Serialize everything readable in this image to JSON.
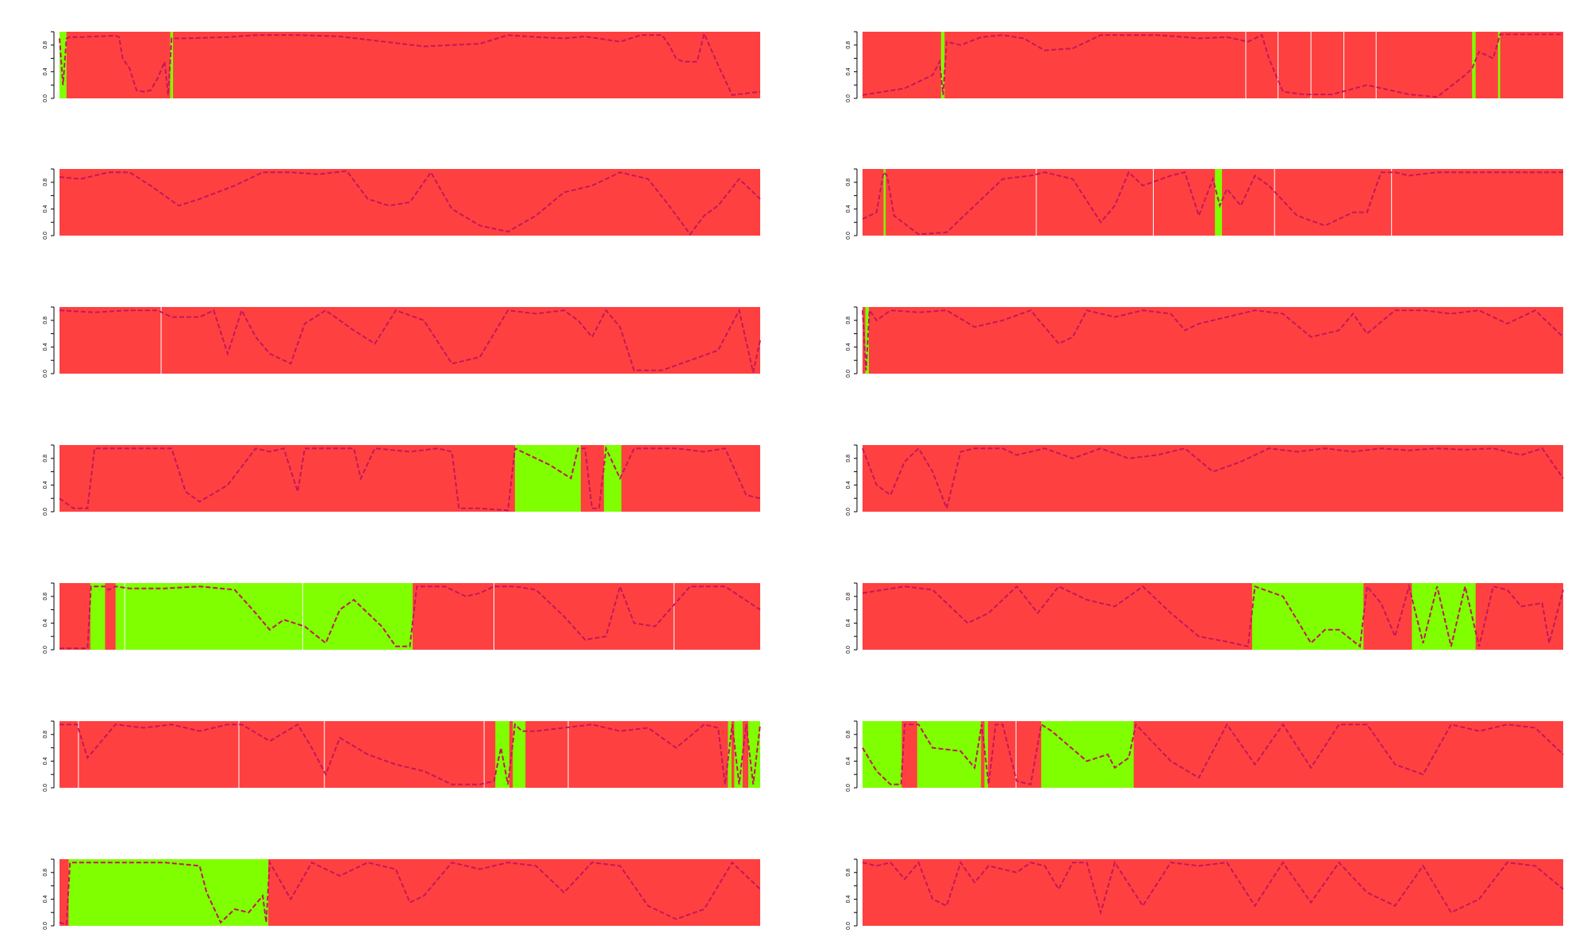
{
  "colors": {
    "state_a": "#ff4040",
    "state_b": "#7fff00",
    "line": "#c2185b",
    "separator": "#ffffff",
    "axis": "#000000"
  },
  "chart_data": [
    {
      "type": "area",
      "panel": "row1-left",
      "ylim": [
        0,
        1
      ],
      "yticks": [
        "0.0",
        "0.4",
        "0.8"
      ],
      "xlim": [
        0,
        100
      ],
      "green_ranges": [
        [
          0,
          1.0
        ],
        [
          15.8,
          16.2
        ]
      ],
      "separators": [],
      "x": [
        0,
        0.5,
        1,
        1.5,
        3,
        8,
        8.5,
        9,
        10,
        11,
        12,
        13,
        14,
        15,
        15.5,
        16,
        18,
        24,
        28,
        30,
        34,
        40,
        52,
        60,
        64,
        68,
        72,
        75,
        80,
        83,
        86,
        87,
        88,
        89,
        90,
        91,
        92,
        94,
        96,
        100
      ],
      "y": [
        0.9,
        0.2,
        0.9,
        0.92,
        0.92,
        0.94,
        0.92,
        0.6,
        0.45,
        0.12,
        0.1,
        0.12,
        0.3,
        0.55,
        0.05,
        0.9,
        0.9,
        0.92,
        0.95,
        0.95,
        0.95,
        0.93,
        0.78,
        0.82,
        0.95,
        0.92,
        0.9,
        0.93,
        0.85,
        0.95,
        0.95,
        0.8,
        0.6,
        0.55,
        0.55,
        0.55,
        0.97,
        0.5,
        0.05,
        0.1
      ]
    },
    {
      "type": "area",
      "panel": "row1-right",
      "ylim": [
        0,
        1
      ],
      "yticks": [
        "0.0",
        "0.4",
        "0.8"
      ],
      "xlim": [
        0,
        100
      ],
      "green_ranges": [
        [
          11.2,
          11.7
        ],
        [
          87,
          87.5
        ],
        [
          90.7,
          91
        ]
      ],
      "separators": [
        54.7,
        59.3,
        64,
        68.7,
        73.3
      ],
      "x": [
        0,
        6,
        10,
        11,
        11.5,
        12,
        14,
        17,
        20,
        23,
        26,
        30,
        34,
        38,
        42,
        46,
        48,
        52,
        55,
        56,
        57,
        58,
        60,
        63,
        67,
        72,
        78,
        82,
        86,
        87,
        88,
        90,
        91,
        92,
        100
      ],
      "y": [
        0.05,
        0.15,
        0.35,
        0.55,
        0.05,
        0.85,
        0.8,
        0.92,
        0.95,
        0.9,
        0.72,
        0.75,
        0.95,
        0.95,
        0.95,
        0.92,
        0.9,
        0.92,
        0.85,
        0.9,
        0.95,
        0.6,
        0.1,
        0.06,
        0.06,
        0.2,
        0.06,
        0.02,
        0.35,
        0.45,
        0.7,
        0.6,
        0.96,
        0.96,
        0.96
      ]
    },
    {
      "type": "area",
      "panel": "row2-left",
      "ylim": [
        0,
        1
      ],
      "yticks": [
        "0.0",
        "0.4",
        "0.8"
      ],
      "xlim": [
        0,
        100
      ],
      "green_ranges": [],
      "separators": [],
      "x": [
        0,
        3,
        7,
        10,
        13,
        17,
        20,
        25,
        29,
        33,
        37,
        41,
        44,
        47,
        50,
        53,
        56,
        60,
        64,
        68,
        72,
        76,
        80,
        84,
        87,
        90,
        92,
        94,
        97,
        100
      ],
      "y": [
        0.88,
        0.85,
        0.95,
        0.95,
        0.75,
        0.45,
        0.55,
        0.75,
        0.95,
        0.95,
        0.92,
        0.97,
        0.55,
        0.45,
        0.5,
        0.95,
        0.4,
        0.15,
        0.06,
        0.3,
        0.65,
        0.75,
        0.95,
        0.85,
        0.45,
        0.02,
        0.3,
        0.45,
        0.85,
        0.55
      ]
    },
    {
      "type": "area",
      "panel": "row2-right",
      "ylim": [
        0,
        1
      ],
      "yticks": [
        "0.0",
        "0.4",
        "0.8"
      ],
      "xlim": [
        0,
        100
      ],
      "green_ranges": [
        [
          3,
          3.3
        ],
        [
          50.3,
          51.3
        ]
      ],
      "separators": [
        24.8,
        41.5,
        58.8,
        75.5
      ],
      "x": [
        0,
        2,
        3,
        3.5,
        4.5,
        8,
        12,
        16,
        20,
        24,
        26,
        30,
        34,
        36,
        38,
        40,
        44,
        46,
        48,
        50,
        51,
        52,
        54,
        56,
        58,
        62,
        66,
        70,
        72,
        74,
        76,
        78,
        82,
        90,
        100
      ],
      "y": [
        0.25,
        0.35,
        0.95,
        0.9,
        0.3,
        0.02,
        0.05,
        0.45,
        0.85,
        0.9,
        0.95,
        0.85,
        0.2,
        0.45,
        0.95,
        0.75,
        0.9,
        0.95,
        0.3,
        0.85,
        0.45,
        0.7,
        0.45,
        0.9,
        0.75,
        0.3,
        0.15,
        0.35,
        0.35,
        0.95,
        0.95,
        0.9,
        0.95,
        0.95,
        0.95
      ]
    },
    {
      "type": "area",
      "panel": "row3-left",
      "ylim": [
        0,
        1
      ],
      "yticks": [
        "0.0",
        "0.4",
        "0.8"
      ],
      "xlim": [
        0,
        100
      ],
      "green_ranges": [],
      "separators": [
        14.5
      ],
      "x": [
        0,
        5,
        10,
        14,
        16,
        20,
        22,
        24,
        26,
        28,
        30,
        33,
        35,
        38,
        42,
        45,
        48,
        52,
        56,
        60,
        64,
        68,
        72,
        74,
        76,
        78,
        80,
        82,
        86,
        90,
        94,
        97,
        99,
        100
      ],
      "y": [
        0.95,
        0.92,
        0.95,
        0.95,
        0.85,
        0.85,
        0.95,
        0.3,
        0.95,
        0.55,
        0.3,
        0.15,
        0.75,
        0.95,
        0.65,
        0.45,
        0.95,
        0.8,
        0.15,
        0.25,
        0.95,
        0.9,
        0.95,
        0.8,
        0.55,
        0.95,
        0.7,
        0.05,
        0.05,
        0.2,
        0.35,
        0.95,
        0.02,
        0.5
      ]
    },
    {
      "type": "area",
      "panel": "row3-right",
      "ylim": [
        0,
        1
      ],
      "yticks": [
        "0.0",
        "0.4",
        "0.8"
      ],
      "xlim": [
        0,
        100
      ],
      "green_ranges": [
        [
          0.4,
          0.9
        ]
      ],
      "separators": [],
      "x": [
        0,
        0.5,
        1,
        2,
        4,
        8,
        12,
        16,
        20,
        24,
        28,
        30,
        32,
        36,
        40,
        44,
        46,
        48,
        52,
        56,
        60,
        64,
        68,
        70,
        72,
        76,
        80,
        84,
        88,
        92,
        96,
        100
      ],
      "y": [
        0.95,
        0.05,
        0.95,
        0.8,
        0.95,
        0.92,
        0.95,
        0.7,
        0.8,
        0.95,
        0.45,
        0.55,
        0.95,
        0.85,
        0.95,
        0.9,
        0.65,
        0.75,
        0.85,
        0.95,
        0.9,
        0.55,
        0.65,
        0.9,
        0.6,
        0.95,
        0.95,
        0.9,
        0.95,
        0.75,
        0.95,
        0.55
      ]
    },
    {
      "type": "area",
      "panel": "row4-left",
      "ylim": [
        0,
        1
      ],
      "yticks": [
        "0.0",
        "0.4",
        "0.8"
      ],
      "xlim": [
        0,
        100
      ],
      "green_ranges": [
        [
          65,
          74.4
        ],
        [
          77.7,
          80.2
        ]
      ],
      "separators": [],
      "x": [
        0,
        2,
        4,
        5,
        8,
        12,
        16,
        18,
        20,
        24,
        28,
        30,
        32,
        34,
        35,
        37,
        40,
        42,
        43,
        45,
        50,
        54,
        56,
        57,
        60,
        64,
        65,
        70,
        73,
        74,
        75,
        76,
        77,
        78,
        80,
        82,
        84,
        88,
        92,
        95,
        98,
        100
      ],
      "y": [
        0.2,
        0.05,
        0.05,
        0.95,
        0.95,
        0.95,
        0.95,
        0.3,
        0.15,
        0.4,
        0.95,
        0.9,
        0.95,
        0.3,
        0.95,
        0.95,
        0.95,
        0.95,
        0.5,
        0.95,
        0.9,
        0.95,
        0.9,
        0.05,
        0.05,
        0.02,
        0.95,
        0.7,
        0.5,
        0.95,
        0.95,
        0.05,
        0.05,
        0.95,
        0.5,
        0.95,
        0.95,
        0.95,
        0.9,
        0.95,
        0.25,
        0.2
      ]
    },
    {
      "type": "area",
      "panel": "row4-right",
      "ylim": [
        0,
        1
      ],
      "yticks": [
        "0.0",
        "0.4",
        "0.8"
      ],
      "xlim": [
        0,
        100
      ],
      "green_ranges": [],
      "separators": [],
      "x": [
        0,
        2,
        4,
        6,
        8,
        10,
        12,
        14,
        16,
        18,
        20,
        22,
        26,
        30,
        34,
        38,
        42,
        46,
        50,
        54,
        58,
        62,
        66,
        70,
        74,
        78,
        82,
        86,
        90,
        94,
        97,
        100
      ],
      "y": [
        0.95,
        0.4,
        0.25,
        0.75,
        0.95,
        0.6,
        0.05,
        0.9,
        0.95,
        0.95,
        0.95,
        0.85,
        0.95,
        0.8,
        0.95,
        0.8,
        0.85,
        0.95,
        0.6,
        0.75,
        0.95,
        0.9,
        0.95,
        0.9,
        0.95,
        0.92,
        0.95,
        0.93,
        0.95,
        0.85,
        0.95,
        0.5
      ]
    },
    {
      "type": "area",
      "panel": "row5-left",
      "ylim": [
        0,
        1
      ],
      "yticks": [
        "0.0",
        "0.4",
        "0.8"
      ],
      "xlim": [
        0,
        100
      ],
      "green_ranges": [
        [
          4.4,
          6.5
        ],
        [
          8,
          50.4
        ]
      ],
      "separators": [
        9.3,
        34.7,
        62,
        87.7
      ],
      "x": [
        0,
        4,
        4.5,
        6.5,
        7,
        8,
        10,
        15,
        20,
        25,
        28,
        30,
        32,
        35,
        38,
        40,
        42,
        44,
        46,
        48,
        50,
        51,
        55,
        58,
        60,
        62,
        65,
        68,
        72,
        75,
        78,
        80,
        82,
        85,
        90,
        95,
        100
      ],
      "y": [
        0.02,
        0.02,
        0.95,
        0.95,
        0.9,
        0.95,
        0.92,
        0.92,
        0.95,
        0.9,
        0.55,
        0.3,
        0.45,
        0.35,
        0.1,
        0.6,
        0.75,
        0.55,
        0.35,
        0.05,
        0.05,
        0.95,
        0.95,
        0.8,
        0.85,
        0.95,
        0.95,
        0.9,
        0.5,
        0.15,
        0.2,
        0.95,
        0.4,
        0.35,
        0.95,
        0.95,
        0.6
      ]
    },
    {
      "type": "area",
      "panel": "row5-right",
      "ylim": [
        0,
        1
      ],
      "yticks": [
        "0.0",
        "0.4",
        "0.8"
      ],
      "xlim": [
        0,
        100
      ],
      "green_ranges": [
        [
          55.6,
          71.5
        ],
        [
          78.4,
          87.5
        ]
      ],
      "separators": [],
      "x": [
        0,
        3,
        6,
        10,
        15,
        18,
        22,
        25,
        28,
        32,
        36,
        40,
        44,
        48,
        52,
        55,
        56,
        60,
        64,
        66,
        68,
        71,
        72,
        74,
        76,
        78,
        80,
        82,
        84,
        86,
        88,
        90,
        92,
        94,
        97,
        98,
        100
      ],
      "y": [
        0.85,
        0.9,
        0.95,
        0.9,
        0.4,
        0.55,
        0.95,
        0.55,
        0.95,
        0.75,
        0.65,
        0.95,
        0.55,
        0.2,
        0.12,
        0.05,
        0.95,
        0.8,
        0.1,
        0.3,
        0.3,
        0.05,
        0.95,
        0.7,
        0.2,
        0.95,
        0.1,
        0.95,
        0.05,
        0.95,
        0.05,
        0.95,
        0.9,
        0.65,
        0.7,
        0.1,
        0.9
      ]
    },
    {
      "type": "area",
      "panel": "row6-left",
      "ylim": [
        0,
        1
      ],
      "yticks": [
        "0.0",
        "0.4",
        "0.8"
      ],
      "xlim": [
        0,
        100
      ],
      "green_ranges": [
        [
          62.2,
          64.2
        ],
        [
          64.7,
          66.5
        ],
        [
          95.4,
          95.9
        ],
        [
          96.3,
          97.5
        ],
        [
          98.3,
          100
        ]
      ],
      "separators": [
        2.7,
        25.6,
        37.8,
        60.6,
        72.6
      ],
      "x": [
        0,
        2.5,
        4,
        8,
        12,
        16,
        20,
        24,
        26,
        30,
        34,
        36,
        38,
        40,
        44,
        48,
        52,
        56,
        60,
        62,
        63,
        64,
        65,
        66,
        68,
        72,
        76,
        80,
        84,
        88,
        92,
        94,
        95,
        96,
        97,
        98,
        99,
        100
      ],
      "y": [
        0.95,
        0.95,
        0.45,
        0.95,
        0.9,
        0.95,
        0.85,
        0.95,
        0.95,
        0.7,
        0.95,
        0.6,
        0.2,
        0.75,
        0.5,
        0.35,
        0.25,
        0.05,
        0.05,
        0.1,
        0.6,
        0.05,
        0.95,
        0.85,
        0.85,
        0.9,
        0.95,
        0.85,
        0.9,
        0.6,
        0.95,
        0.9,
        0.05,
        0.95,
        0.05,
        0.95,
        0.05,
        0.95
      ]
    },
    {
      "type": "area",
      "panel": "row6-right",
      "ylim": [
        0,
        1
      ],
      "yticks": [
        "0.0",
        "0.4",
        "0.8"
      ],
      "xlim": [
        0,
        100
      ],
      "green_ranges": [
        [
          0,
          5.6
        ],
        [
          7.8,
          16.9
        ],
        [
          17.4,
          17.9
        ],
        [
          25.5,
          38.7
        ]
      ],
      "separators": [
        21.9
      ],
      "x": [
        0,
        2,
        4,
        5.5,
        6,
        8,
        10,
        14,
        16,
        17,
        18,
        19,
        20,
        22,
        24,
        25.5,
        27,
        32,
        35,
        36,
        38,
        39,
        44,
        48,
        52,
        56,
        60,
        64,
        68,
        72,
        76,
        80,
        84,
        88,
        92,
        96,
        100
      ],
      "y": [
        0.6,
        0.25,
        0.05,
        0.05,
        0.95,
        0.95,
        0.6,
        0.55,
        0.3,
        0.95,
        0.05,
        0.95,
        0.95,
        0.1,
        0.05,
        0.95,
        0.85,
        0.4,
        0.5,
        0.3,
        0.45,
        0.95,
        0.4,
        0.15,
        0.95,
        0.35,
        0.95,
        0.3,
        0.95,
        0.95,
        0.35,
        0.2,
        0.95,
        0.85,
        0.95,
        0.9,
        0.5
      ]
    },
    {
      "type": "area",
      "panel": "row7-left",
      "ylim": [
        0,
        1
      ],
      "yticks": [
        "0.0",
        "0.4",
        "0.8"
      ],
      "xlim": [
        0,
        100
      ],
      "green_ranges": [
        [
          1.3,
          29.8
        ]
      ],
      "separators": [],
      "x": [
        0,
        1,
        1.5,
        5,
        10,
        15,
        20,
        21,
        23,
        25,
        27,
        29,
        29.5,
        30,
        33,
        36,
        40,
        44,
        48,
        50,
        52,
        56,
        60,
        64,
        68,
        72,
        76,
        80,
        84,
        88,
        92,
        96,
        100
      ],
      "y": [
        0.05,
        0.02,
        0.95,
        0.95,
        0.95,
        0.95,
        0.9,
        0.5,
        0.05,
        0.25,
        0.2,
        0.45,
        0.05,
        0.95,
        0.4,
        0.95,
        0.75,
        0.95,
        0.85,
        0.35,
        0.45,
        0.95,
        0.85,
        0.95,
        0.9,
        0.5,
        0.95,
        0.9,
        0.3,
        0.1,
        0.25,
        0.95,
        0.55
      ]
    },
    {
      "type": "area",
      "panel": "row7-right",
      "ylim": [
        0,
        1
      ],
      "yticks": [
        "0.0",
        "0.4",
        "0.8"
      ],
      "xlim": [
        0,
        100
      ],
      "green_ranges": [],
      "separators": [],
      "x": [
        0,
        2,
        4,
        6,
        8,
        10,
        12,
        14,
        16,
        18,
        20,
        22,
        24,
        26,
        28,
        30,
        32,
        34,
        36,
        40,
        44,
        48,
        52,
        56,
        60,
        64,
        68,
        72,
        76,
        80,
        84,
        88,
        92,
        96,
        100
      ],
      "y": [
        0.95,
        0.9,
        0.95,
        0.7,
        0.95,
        0.4,
        0.3,
        0.95,
        0.65,
        0.9,
        0.85,
        0.8,
        0.95,
        0.9,
        0.55,
        0.95,
        0.95,
        0.2,
        0.95,
        0.3,
        0.95,
        0.9,
        0.95,
        0.3,
        0.95,
        0.35,
        0.95,
        0.5,
        0.3,
        0.9,
        0.2,
        0.4,
        0.95,
        0.9,
        0.55
      ]
    }
  ]
}
